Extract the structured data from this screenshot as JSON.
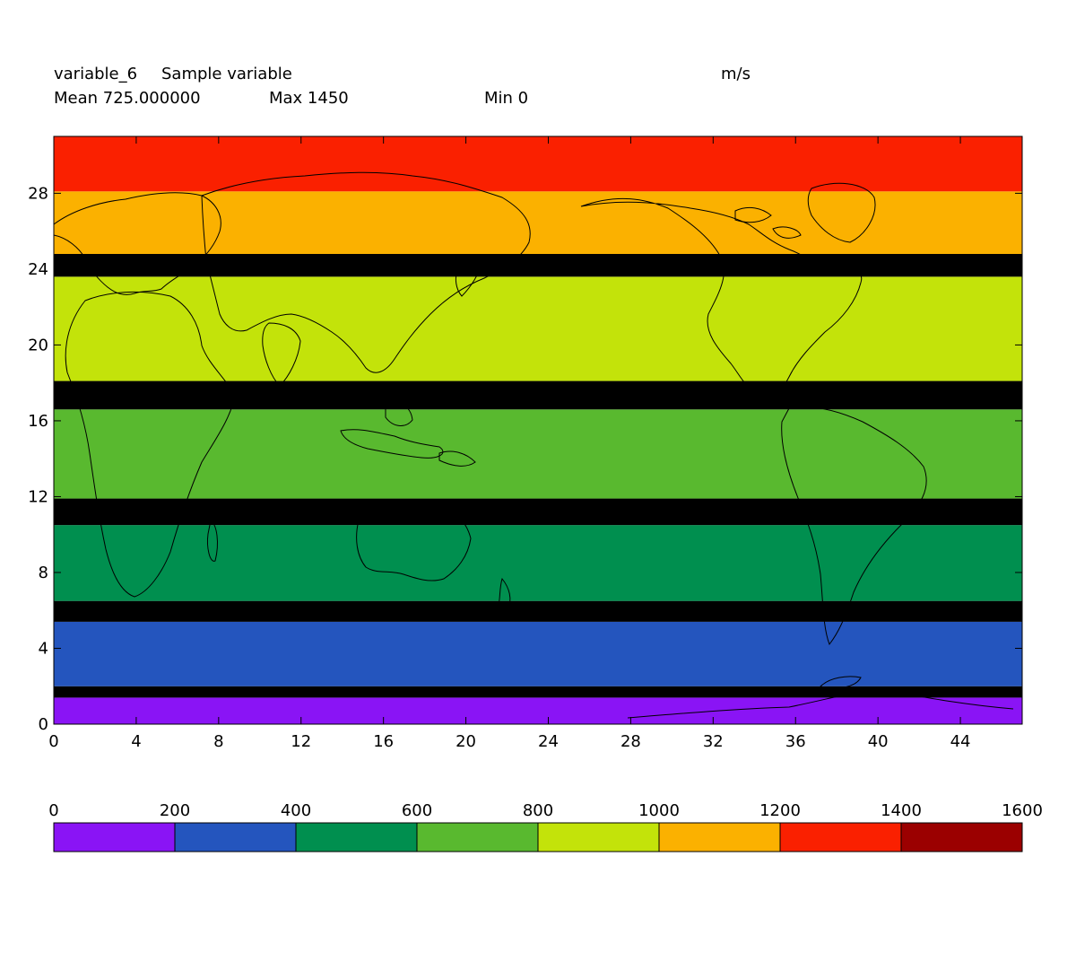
{
  "header": {
    "var_name": "variable_6",
    "long_name": "Sample variable",
    "units": "m/s",
    "mean": "Mean 725.000000",
    "max": "Max 1450",
    "min": "Min 0"
  },
  "chart_data": {
    "type": "heatmap",
    "title": "",
    "xlabel": "",
    "ylabel": "",
    "xlim": [
      0,
      47
    ],
    "ylim": [
      0,
      31
    ],
    "x_ticks": [
      0,
      4,
      8,
      12,
      16,
      20,
      24,
      28,
      32,
      36,
      40,
      44
    ],
    "y_ticks": [
      0,
      4,
      8,
      12,
      16,
      20,
      24,
      28
    ],
    "background": "#ffffff",
    "overlay": "continent outlines (world map)",
    "bands": [
      {
        "ymin": 0.0,
        "ymax": 1.4,
        "value": 100,
        "color": "#8A14F5"
      },
      {
        "ymin": 1.4,
        "ymax": 2.0,
        "value": null,
        "color": "#000000"
      },
      {
        "ymin": 2.0,
        "ymax": 5.4,
        "value": 300,
        "color": "#2455BE"
      },
      {
        "ymin": 5.4,
        "ymax": 6.5,
        "value": null,
        "color": "#000000"
      },
      {
        "ymin": 6.5,
        "ymax": 10.5,
        "value": 500,
        "color": "#008F4F"
      },
      {
        "ymin": 10.5,
        "ymax": 11.9,
        "value": null,
        "color": "#000000"
      },
      {
        "ymin": 11.9,
        "ymax": 16.6,
        "value": 700,
        "color": "#59B92F"
      },
      {
        "ymin": 16.6,
        "ymax": 18.1,
        "value": null,
        "color": "#000000"
      },
      {
        "ymin": 18.1,
        "ymax": 23.6,
        "value": 900,
        "color": "#C3E30A"
      },
      {
        "ymin": 23.6,
        "ymax": 24.8,
        "value": null,
        "color": "#000000"
      },
      {
        "ymin": 24.8,
        "ymax": 28.1,
        "value": 1100,
        "color": "#FBB100"
      },
      {
        "ymin": 28.1,
        "ymax": 31.0,
        "value": 1300,
        "color": "#FA2000"
      }
    ],
    "colorbar": {
      "ticks": [
        "0",
        "200",
        "400",
        "600",
        "800",
        "1000",
        "1200",
        "1400",
        "1600"
      ],
      "colors": [
        "#8A14F5",
        "#2455BE",
        "#008F4F",
        "#59B92F",
        "#C3E30A",
        "#FBB100",
        "#FA2000",
        "#9B0000"
      ]
    }
  }
}
